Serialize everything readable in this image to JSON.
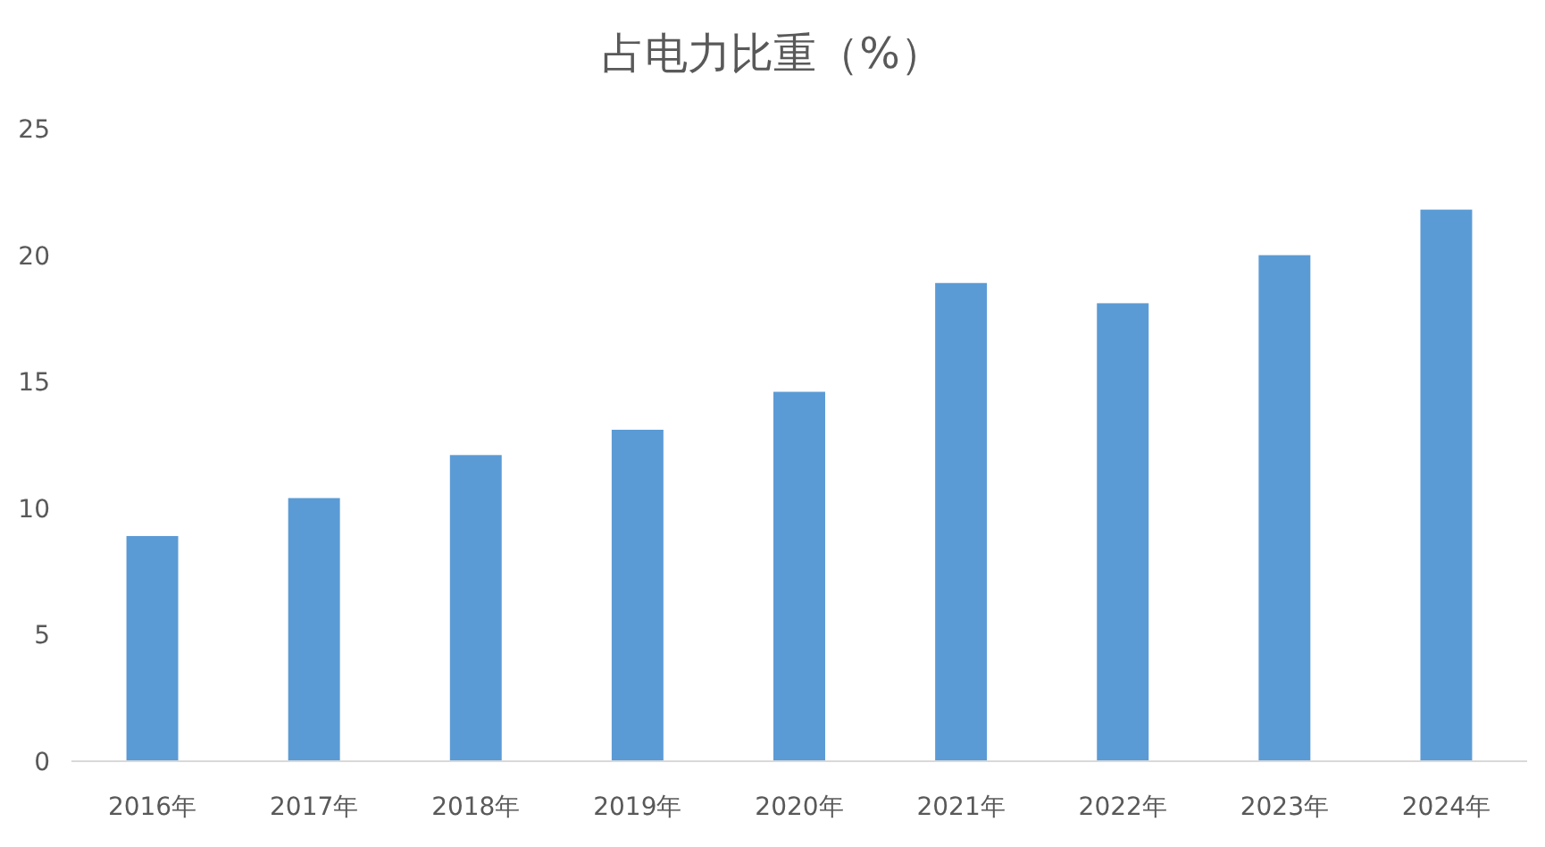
{
  "chart_data": {
    "type": "bar",
    "title": "占电力比重（%）",
    "categories": [
      "2016年",
      "2017年",
      "2018年",
      "2019年",
      "2020年",
      "2021年",
      "2022年",
      "2023年",
      "2024年"
    ],
    "values": [
      8.9,
      10.4,
      12.1,
      13.1,
      14.6,
      18.9,
      18.1,
      20.0,
      21.8
    ],
    "color": "#5b9bd5",
    "ylim": [
      0,
      25
    ],
    "yticks": [
      0,
      5,
      10,
      15,
      20,
      25
    ],
    "grid": false
  }
}
